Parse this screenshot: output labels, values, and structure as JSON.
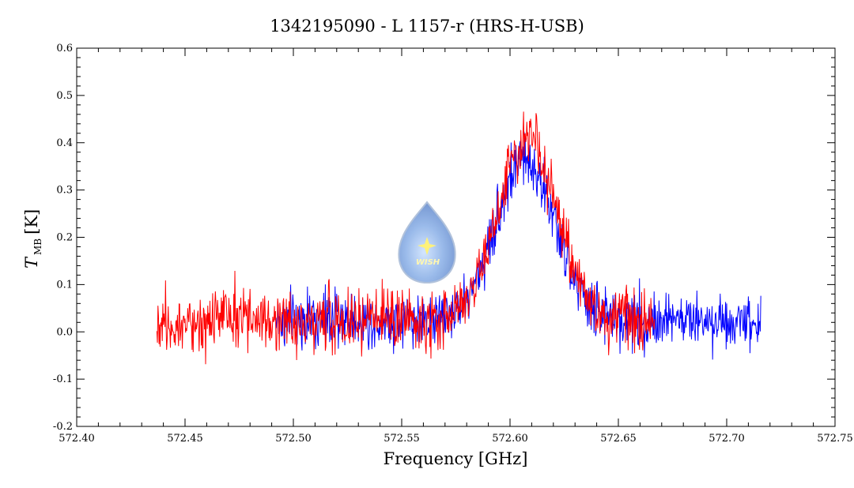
{
  "chart_data": {
    "type": "line",
    "title": "1342195090 - L 1157-r (HRS-H-USB)",
    "xlabel": "Frequency [GHz]",
    "ylabel_main": "T",
    "ylabel_sub": "MB",
    "ylabel_unit": "[K]",
    "xlim": [
      572.4,
      572.75
    ],
    "ylim": [
      -0.2,
      0.6
    ],
    "x_ticks": [
      "572.40",
      "572.45",
      "572.50",
      "572.55",
      "572.60",
      "572.65",
      "572.70",
      "572.75"
    ],
    "y_ticks": [
      "-0.2",
      "-0.1",
      "0.0",
      "0.1",
      "0.2",
      "0.3",
      "0.4",
      "0.5",
      "0.6"
    ],
    "grid": false,
    "series": [
      {
        "color": "#0000ff",
        "x_range": [
          572.492,
          572.716
        ],
        "noise_rms": 0.055,
        "profile": {
          "center": 572.607,
          "amplitude": 0.34,
          "fwhm": 0.032
        },
        "points": [
          [
            572.492,
            0.02
          ],
          [
            572.52,
            0.01
          ],
          [
            572.55,
            0.02
          ],
          [
            572.585,
            0.08
          ],
          [
            572.595,
            0.23
          ],
          [
            572.607,
            0.34
          ],
          [
            572.62,
            0.28
          ],
          [
            572.635,
            0.1
          ],
          [
            572.65,
            0.03
          ],
          [
            572.68,
            0.0
          ],
          [
            572.716,
            0.02
          ]
        ]
      },
      {
        "color": "#ff0000",
        "x_range": [
          572.437,
          572.667
        ],
        "noise_rms": 0.06,
        "profile": {
          "center": 572.608,
          "amplitude": 0.38,
          "fwhm": 0.032
        },
        "points": [
          [
            572.437,
            0.03
          ],
          [
            572.47,
            0.04
          ],
          [
            572.5,
            0.05
          ],
          [
            572.53,
            0.04
          ],
          [
            572.56,
            0.04
          ],
          [
            572.585,
            0.1
          ],
          [
            572.597,
            0.26
          ],
          [
            572.608,
            0.38
          ],
          [
            572.62,
            0.3
          ],
          [
            572.635,
            0.12
          ],
          [
            572.65,
            0.03
          ],
          [
            572.667,
            0.02
          ]
        ]
      }
    ],
    "logo": {
      "text": "WISH"
    }
  }
}
